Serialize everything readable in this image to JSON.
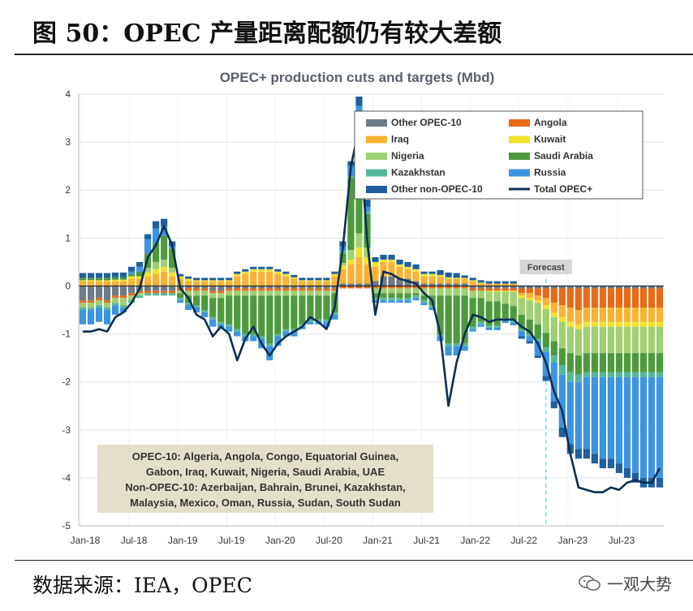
{
  "figure_title": "图 50：OPEC 产量距离配额仍有较大差额",
  "source_text": "数据来源：IEA，OPEC",
  "watermark": "一观大势",
  "chart_data": {
    "type": "bar",
    "stacked": true,
    "title": "OPEC+ production cuts and targets (Mbd)",
    "ylim": [
      -5,
      4
    ],
    "yticks": [
      "4",
      "3",
      "2",
      "1",
      "0",
      "-1",
      "-2",
      "-3",
      "-4",
      "-5"
    ],
    "x_tick_labels": [
      "Jan-18",
      "Jul-18",
      "Jan-19",
      "Jul-19",
      "Jan-20",
      "Jul-20",
      "Jan-21",
      "Jul-21",
      "Jan-22",
      "Jul-22",
      "Jan-23",
      "Jul-23"
    ],
    "x_start_index": 0,
    "x_count": 72,
    "forecast_label": "Forecast",
    "forecast_start_index": 57,
    "legend": [
      {
        "name": "Other OPEC-10",
        "color": "#6d7b86"
      },
      {
        "name": "Angola",
        "color": "#e86a16"
      },
      {
        "name": "Iraq",
        "color": "#f9b233"
      },
      {
        "name": "Kuwait",
        "color": "#f2e22b"
      },
      {
        "name": "Nigeria",
        "color": "#9fd071"
      },
      {
        "name": "Saudi Arabia",
        "color": "#4d9a3c"
      },
      {
        "name": "Kazakhstan",
        "color": "#56b89a"
      },
      {
        "name": "Russia",
        "color": "#3d94e0"
      },
      {
        "name": "Other non-OPEC-10",
        "color": "#1f5f9e"
      },
      {
        "name": "Total OPEC+",
        "color": "#0b2f55"
      }
    ],
    "annotation": [
      "OPEC-10: Algeria, Angola, Congo, Equatorial Guinea,",
      "Gabon, Iraq, Kuwait, Nigeria, Saudi Arabia, UAE",
      "Non-OPEC-10: Azerbaijan, Bahrain, Brunei, Kazakhstan,",
      "Malaysia, Mexico, Oman, Russia, Sudan, South Sudan"
    ],
    "series": [
      {
        "name": "Other OPEC-10",
        "values": [
          -0.3,
          -0.3,
          -0.25,
          -0.3,
          -0.2,
          -0.2,
          -0.15,
          -0.1,
          -0.1,
          -0.1,
          -0.1,
          -0.1,
          -0.05,
          -0.05,
          -0.05,
          -0.05,
          -0.1,
          -0.1,
          -0.05,
          -0.05,
          -0.05,
          -0.05,
          -0.05,
          -0.05,
          -0.05,
          -0.05,
          -0.05,
          -0.05,
          -0.05,
          -0.05,
          -0.05,
          -0.05,
          0.05,
          0.05,
          0.05,
          0.05,
          0.1,
          0.2,
          0.2,
          0.15,
          0.15,
          0.1,
          0.05,
          0.05,
          0.05,
          0.05,
          0.05,
          0.05,
          -0.05,
          -0.05,
          -0.05,
          -0.05,
          -0.05,
          -0.05,
          -0.05,
          -0.05,
          -0.05,
          -0.05,
          -0.05,
          -0.05,
          -0.05,
          -0.05,
          -0.05,
          -0.05,
          -0.05,
          -0.05,
          -0.05,
          -0.05,
          -0.05,
          -0.05,
          -0.05,
          -0.05
        ]
      },
      {
        "name": "Angola",
        "values": [
          -0.05,
          -0.05,
          -0.05,
          -0.05,
          -0.05,
          -0.05,
          -0.05,
          -0.05,
          -0.05,
          -0.05,
          -0.05,
          -0.05,
          -0.05,
          -0.05,
          -0.05,
          -0.05,
          -0.05,
          -0.05,
          -0.05,
          -0.05,
          -0.05,
          -0.05,
          -0.05,
          -0.05,
          -0.05,
          -0.05,
          -0.05,
          -0.05,
          -0.05,
          -0.05,
          -0.05,
          -0.05,
          -0.05,
          -0.05,
          -0.05,
          -0.05,
          -0.05,
          -0.05,
          -0.05,
          -0.05,
          -0.05,
          -0.05,
          -0.05,
          -0.05,
          -0.05,
          -0.05,
          -0.05,
          -0.05,
          -0.05,
          -0.05,
          -0.05,
          -0.05,
          -0.05,
          -0.05,
          -0.1,
          -0.1,
          -0.15,
          -0.2,
          -0.3,
          -0.35,
          -0.4,
          -0.45,
          -0.4,
          -0.4,
          -0.4,
          -0.4,
          -0.4,
          -0.4,
          -0.4,
          -0.4,
          -0.4,
          -0.4
        ]
      },
      {
        "name": "Iraq",
        "values": [
          0.1,
          0.1,
          0.1,
          0.1,
          0.1,
          0.1,
          0.15,
          0.15,
          0.2,
          0.25,
          0.3,
          0.2,
          0.15,
          0.1,
          0.1,
          0.1,
          0.1,
          0.1,
          0.1,
          0.2,
          0.25,
          0.3,
          0.3,
          0.3,
          0.25,
          0.2,
          0.15,
          0.1,
          0.1,
          0.1,
          0.1,
          0.2,
          0.3,
          0.4,
          0.55,
          0.4,
          0.3,
          0.3,
          0.3,
          0.25,
          0.2,
          0.2,
          0.15,
          0.15,
          0.15,
          0.1,
          0.1,
          0.1,
          0.1,
          0.05,
          0.05,
          0.05,
          0.05,
          0.05,
          -0.05,
          -0.1,
          -0.1,
          -0.15,
          -0.2,
          -0.25,
          -0.3,
          -0.3,
          -0.3,
          -0.3,
          -0.3,
          -0.3,
          -0.3,
          -0.3,
          -0.3,
          -0.3,
          -0.3,
          -0.3
        ]
      },
      {
        "name": "Kuwait",
        "values": [
          0.02,
          0.02,
          0.02,
          0.02,
          0.03,
          0.03,
          0.05,
          0.05,
          0.08,
          0.1,
          0.1,
          0.08,
          0.05,
          0.05,
          0.02,
          0.02,
          0.02,
          0.02,
          0.02,
          0.05,
          0.05,
          0.05,
          0.05,
          0.05,
          0.05,
          0.05,
          0.03,
          0.02,
          0.02,
          0.02,
          0.02,
          0.05,
          0.08,
          0.1,
          0.2,
          0.15,
          0.1,
          0.05,
          0.05,
          0.05,
          0.05,
          0.05,
          0.05,
          0.05,
          0.03,
          0.03,
          0.02,
          0.02,
          0.02,
          0.02,
          -0.02,
          -0.02,
          -0.02,
          -0.02,
          -0.05,
          -0.05,
          -0.05,
          -0.08,
          -0.1,
          -0.1,
          -0.1,
          -0.1,
          -0.1,
          -0.1,
          -0.1,
          -0.1,
          -0.1,
          -0.1,
          -0.1,
          -0.1,
          -0.1,
          -0.1
        ]
      },
      {
        "name": "Nigeria",
        "values": [
          -0.1,
          -0.1,
          -0.1,
          -0.1,
          -0.1,
          -0.15,
          -0.1,
          -0.05,
          0.1,
          0.15,
          0.15,
          0.1,
          -0.05,
          -0.1,
          -0.1,
          -0.1,
          -0.1,
          -0.1,
          -0.1,
          -0.1,
          -0.1,
          -0.1,
          -0.1,
          -0.1,
          -0.1,
          -0.1,
          -0.1,
          -0.1,
          -0.1,
          -0.1,
          -0.1,
          -0.05,
          0.05,
          0.2,
          0.3,
          0.2,
          -0.1,
          -0.1,
          -0.1,
          -0.1,
          -0.1,
          -0.1,
          -0.15,
          -0.15,
          -0.15,
          -0.15,
          -0.15,
          -0.15,
          -0.15,
          -0.15,
          -0.2,
          -0.2,
          -0.25,
          -0.3,
          -0.35,
          -0.4,
          -0.45,
          -0.5,
          -0.5,
          -0.55,
          -0.55,
          -0.55,
          -0.55,
          -0.55,
          -0.55,
          -0.55,
          -0.55,
          -0.55,
          -0.55,
          -0.55,
          -0.55,
          -0.55
        ]
      },
      {
        "name": "Saudi Arabia",
        "values": [
          0.05,
          0.05,
          0.05,
          0.05,
          0.05,
          0.05,
          0.05,
          0.1,
          0.3,
          0.4,
          0.5,
          0.4,
          -0.1,
          -0.15,
          -0.2,
          -0.3,
          -0.4,
          -0.5,
          -0.6,
          -0.7,
          -0.8,
          -0.8,
          -0.85,
          -1.0,
          -0.8,
          -0.7,
          -0.7,
          -0.6,
          -0.5,
          -0.5,
          -0.5,
          -0.4,
          0.2,
          1.5,
          2.4,
          0.7,
          -0.1,
          -0.1,
          -0.1,
          -0.1,
          -0.1,
          -0.05,
          -0.1,
          -0.2,
          -0.8,
          -1.0,
          -1.0,
          -1.0,
          -0.6,
          -0.5,
          -0.5,
          -0.5,
          -0.3,
          -0.3,
          -0.3,
          -0.3,
          -0.3,
          -0.3,
          -0.3,
          -0.35,
          -0.4,
          -0.4,
          -0.4,
          -0.4,
          -0.4,
          -0.4,
          -0.4,
          -0.4,
          -0.4,
          -0.4,
          -0.4,
          -0.4
        ]
      },
      {
        "name": "Kazakhstan",
        "values": [
          -0.05,
          -0.05,
          -0.05,
          -0.05,
          -0.05,
          -0.05,
          -0.05,
          -0.05,
          -0.05,
          -0.05,
          -0.05,
          -0.05,
          -0.05,
          -0.05,
          -0.05,
          -0.05,
          -0.05,
          -0.05,
          -0.05,
          -0.05,
          -0.05,
          -0.05,
          -0.05,
          -0.05,
          -0.05,
          -0.05,
          -0.05,
          -0.05,
          -0.05,
          -0.05,
          -0.05,
          -0.05,
          0.05,
          0.05,
          0.05,
          0.05,
          -0.05,
          -0.05,
          -0.05,
          -0.05,
          -0.05,
          -0.05,
          -0.05,
          -0.05,
          -0.05,
          -0.05,
          -0.05,
          -0.05,
          -0.05,
          -0.05,
          -0.05,
          -0.05,
          -0.05,
          -0.05,
          -0.05,
          -0.05,
          -0.05,
          -0.1,
          -0.15,
          -0.2,
          -0.2,
          -0.15,
          -0.1,
          -0.1,
          -0.1,
          -0.1,
          -0.1,
          -0.1,
          -0.1,
          -0.1,
          -0.1,
          -0.1
        ]
      },
      {
        "name": "Russia",
        "values": [
          -0.3,
          -0.3,
          -0.3,
          -0.3,
          -0.2,
          -0.1,
          0.05,
          0.1,
          0.3,
          0.3,
          0.2,
          0.05,
          -0.05,
          -0.1,
          -0.1,
          -0.1,
          -0.15,
          -0.1,
          -0.1,
          -0.1,
          -0.1,
          -0.1,
          -0.2,
          -0.3,
          -0.2,
          -0.1,
          -0.1,
          -0.05,
          -0.05,
          -0.05,
          -0.1,
          -0.1,
          0.1,
          0.2,
          0.2,
          0.1,
          -0.05,
          -0.05,
          -0.05,
          -0.05,
          -0.05,
          -0.05,
          -0.05,
          -0.05,
          -0.1,
          -0.2,
          -0.2,
          -0.1,
          -0.05,
          -0.05,
          -0.05,
          -0.05,
          -0.05,
          -0.05,
          -0.1,
          -0.1,
          -0.3,
          -0.5,
          -0.8,
          -1.1,
          -1.3,
          -1.4,
          -1.5,
          -1.6,
          -1.7,
          -1.7,
          -1.8,
          -1.9,
          -2.0,
          -2.1,
          -2.1,
          -2.1
        ]
      },
      {
        "name": "Other non-OPEC-10",
        "values": [
          0.1,
          0.1,
          0.1,
          0.1,
          0.1,
          0.1,
          0.1,
          0.1,
          0.1,
          0.15,
          0.15,
          0.1,
          0.05,
          0.05,
          0.05,
          0.05,
          0.05,
          0.05,
          0.05,
          0.05,
          0.05,
          0.05,
          0.05,
          0.05,
          0.05,
          0.05,
          0.05,
          0.05,
          0.05,
          0.05,
          0.05,
          0.05,
          0.1,
          0.1,
          0.2,
          0.15,
          0.1,
          0.1,
          0.1,
          0.1,
          0.1,
          0.1,
          0.05,
          0.05,
          0.1,
          0.1,
          0.1,
          0.05,
          0.05,
          0.05,
          0.05,
          0.05,
          0.05,
          0.05,
          -0.05,
          -0.05,
          -0.05,
          -0.1,
          -0.15,
          -0.2,
          -0.2,
          -0.2,
          -0.2,
          -0.2,
          -0.2,
          -0.2,
          -0.2,
          -0.2,
          -0.2,
          -0.2,
          -0.2,
          -0.2
        ]
      }
    ],
    "total_line": [
      -0.95,
      -0.95,
      -0.9,
      -0.95,
      -0.65,
      -0.55,
      -0.35,
      -0.05,
      0.6,
      0.85,
      1.25,
      0.85,
      -0.05,
      -0.25,
      -0.6,
      -0.7,
      -1.05,
      -0.85,
      -1.0,
      -1.55,
      -1.1,
      -0.85,
      -1.2,
      -1.45,
      -1.2,
      -1.05,
      -0.95,
      -0.85,
      -0.65,
      -0.75,
      -0.9,
      -0.45,
      0.8,
      2.5,
      3.3,
      0.95,
      -0.6,
      0.3,
      0.25,
      0.15,
      0.1,
      0.05,
      -0.15,
      -0.3,
      -1.0,
      -2.5,
      -1.6,
      -1.0,
      -0.6,
      -0.65,
      -0.75,
      -0.7,
      -0.7,
      -0.7,
      -0.85,
      -0.95,
      -1.2,
      -1.6,
      -2.2,
      -2.6,
      -3.5,
      -4.2,
      -4.25,
      -4.3,
      -4.3,
      -4.2,
      -4.25,
      -4.1,
      -4.05,
      -4.1,
      -4.1,
      -3.8
    ]
  }
}
